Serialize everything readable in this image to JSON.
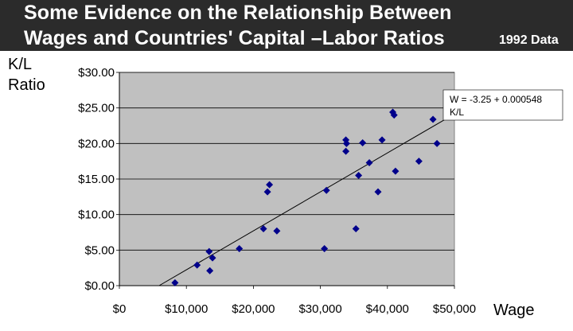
{
  "header": {
    "title_line1": "Some Evidence on the Relationship Between",
    "title_line2": "Wages and Countries' Capital –Labor Ratios",
    "data_note": "1992 Data"
  },
  "chart_data": {
    "type": "scatter",
    "title": "Some Evidence on the Relationship Between Wages and Countries' Capital –Labor Ratios",
    "subtitle": "1992 Data",
    "xlabel": "Wage",
    "ylabel": "K/L Ratio",
    "xlim": [
      0,
      50000
    ],
    "ylim": [
      0,
      30
    ],
    "x_ticks": [
      0,
      10000,
      20000,
      30000,
      40000,
      50000
    ],
    "x_tick_labels": [
      "$0",
      "$10,000",
      "$20,000",
      "$30,000",
      "$40,000",
      "$50,000"
    ],
    "y_ticks": [
      0,
      5,
      10,
      15,
      20,
      25,
      30
    ],
    "y_tick_labels": [
      "$0.00",
      "$5.00",
      "$10.00",
      "$15.00",
      "$20.00",
      "$25.00",
      "$30.00"
    ],
    "grid": "horizontal",
    "plot_background": "#c0c0c0",
    "marker_color": "#00008b",
    "marker": "diamond",
    "points": [
      {
        "x": 8300,
        "y": 0.4
      },
      {
        "x": 11600,
        "y": 2.9
      },
      {
        "x": 13400,
        "y": 4.8
      },
      {
        "x": 13500,
        "y": 2.1
      },
      {
        "x": 13900,
        "y": 3.9
      },
      {
        "x": 17900,
        "y": 5.2
      },
      {
        "x": 21500,
        "y": 8.0
      },
      {
        "x": 22100,
        "y": 13.2
      },
      {
        "x": 22400,
        "y": 14.2
      },
      {
        "x": 23500,
        "y": 7.7
      },
      {
        "x": 30600,
        "y": 5.2
      },
      {
        "x": 30900,
        "y": 13.4
      },
      {
        "x": 33800,
        "y": 20.5
      },
      {
        "x": 33900,
        "y": 20.0
      },
      {
        "x": 33800,
        "y": 18.9
      },
      {
        "x": 35300,
        "y": 8.0
      },
      {
        "x": 35700,
        "y": 15.5
      },
      {
        "x": 36300,
        "y": 20.1
      },
      {
        "x": 37300,
        "y": 17.3
      },
      {
        "x": 38600,
        "y": 13.2
      },
      {
        "x": 39200,
        "y": 20.5
      },
      {
        "x": 40800,
        "y": 24.4
      },
      {
        "x": 41000,
        "y": 24.0
      },
      {
        "x": 41200,
        "y": 16.1
      },
      {
        "x": 44700,
        "y": 17.5
      },
      {
        "x": 46800,
        "y": 23.4
      },
      {
        "x": 47400,
        "y": 20.0
      }
    ],
    "trendline": {
      "intercept": -3.25,
      "slope": 0.000548,
      "x_range": [
        5930,
        50300
      ],
      "equation_line1": "W = -3.25 + 0.000548",
      "equation_line2": "K/L"
    }
  }
}
